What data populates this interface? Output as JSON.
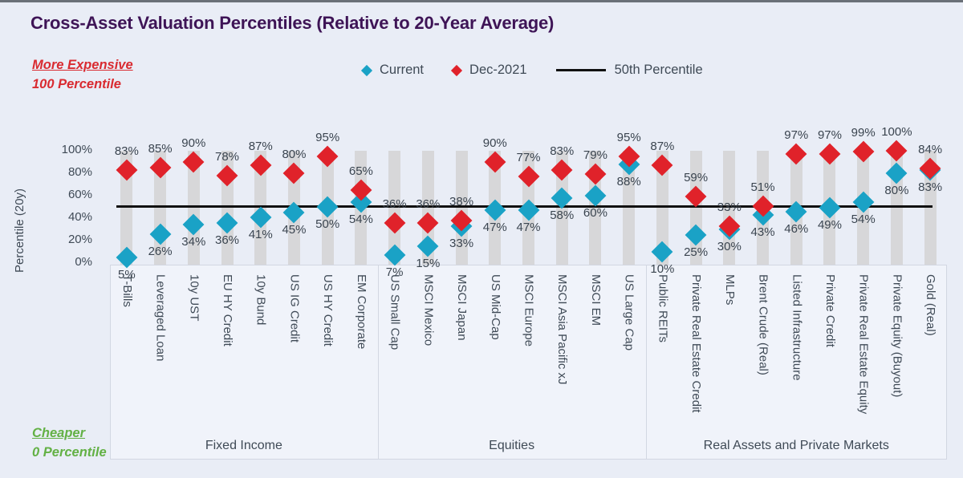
{
  "title": "Cross-Asset Valuation Percentiles (Relative to 20-Year Average)",
  "annotations": {
    "top_left_line1": "More Expensive",
    "top_left_line2": "100 Percentile",
    "bottom_left_line1": "Cheaper",
    "bottom_left_line2": "0 Percentile"
  },
  "legend": [
    {
      "label": "Current",
      "marker": "diamond",
      "color": "#1aa2c6"
    },
    {
      "label": "Dec-2021",
      "marker": "diamond",
      "color": "#e0222a"
    },
    {
      "label": "50th Percentile",
      "marker": "line",
      "color": "#111111"
    }
  ],
  "chart_data": {
    "type": "scatter",
    "title": "Cross-Asset Valuation Percentiles (Relative to 20-Year Average)",
    "xlabel": "",
    "ylabel": "Percentile (20y)",
    "ylim": [
      0,
      100
    ],
    "yticks": [
      "0%",
      "20%",
      "40%",
      "60%",
      "80%",
      "100%"
    ],
    "grid": false,
    "legend_position": "top",
    "series_names": [
      "Current",
      "Dec-2021"
    ],
    "reference_line": {
      "label": "50th Percentile",
      "value": 50
    },
    "colors": {
      "current": "#1aa2c6",
      "dec_2021": "#e0222a",
      "reference_line": "#111111",
      "title": "#3e1456",
      "more_expensive": "#d92b31",
      "cheaper": "#63b145",
      "bar": "#d7d7d9",
      "background": "#e9edf6",
      "text": "#3f4a56"
    },
    "groups": [
      {
        "name": "Fixed Income",
        "points": [
          {
            "label": "T-Bills",
            "current": 5,
            "dec_2021": 83
          },
          {
            "label": "Leveraged Loan",
            "current": 26,
            "dec_2021": 85
          },
          {
            "label": "10y UST",
            "current": 34,
            "dec_2021": 90
          },
          {
            "label": "EU HY Credit",
            "current": 36,
            "dec_2021": 78
          },
          {
            "label": "10y Bund",
            "current": 41,
            "dec_2021": 87
          },
          {
            "label": "US IG Credit",
            "current": 45,
            "dec_2021": 80
          },
          {
            "label": "US HY Credit",
            "current": 50,
            "dec_2021": 95
          },
          {
            "label": "EM Corporate",
            "current": 54,
            "dec_2021": 65
          }
        ]
      },
      {
        "name": "Equities",
        "points": [
          {
            "label": "US Small Cap",
            "current": 7,
            "dec_2021": 36
          },
          {
            "label": "MSCI Mexico",
            "current": 15,
            "dec_2021": 36
          },
          {
            "label": "MSCI Japan",
            "current": 33,
            "dec_2021": 38
          },
          {
            "label": "US Mid-Cap",
            "current": 47,
            "dec_2021": 90
          },
          {
            "label": "MSCI Europe",
            "current": 47,
            "dec_2021": 77
          },
          {
            "label": "MSCI Asia Pacific xJ",
            "current": 58,
            "dec_2021": 83
          },
          {
            "label": "MSCI EM",
            "current": 60,
            "dec_2021": 79
          },
          {
            "label": "US Large Cap",
            "current": 88,
            "dec_2021": 95
          }
        ]
      },
      {
        "name": "Real Assets and Private Markets",
        "points": [
          {
            "label": "Public REITs",
            "current": 10,
            "dec_2021": 87
          },
          {
            "label": "Private Real Estate Credit",
            "current": 25,
            "dec_2021": 59
          },
          {
            "label": "MLPs",
            "current": 30,
            "dec_2021": 33
          },
          {
            "label": "Brent Crude (Real)",
            "current": 43,
            "dec_2021": 51
          },
          {
            "label": "Listed Infrastructure",
            "current": 46,
            "dec_2021": 97
          },
          {
            "label": "Private Credit",
            "current": 49,
            "dec_2021": 97
          },
          {
            "label": "Private Real Estate Equity",
            "current": 54,
            "dec_2021": 99
          },
          {
            "label": "Private Equity (Buyout)",
            "current": 80,
            "dec_2021": 100
          },
          {
            "label": "Gold (Real)",
            "current": 83,
            "dec_2021": 84
          }
        ]
      }
    ]
  }
}
